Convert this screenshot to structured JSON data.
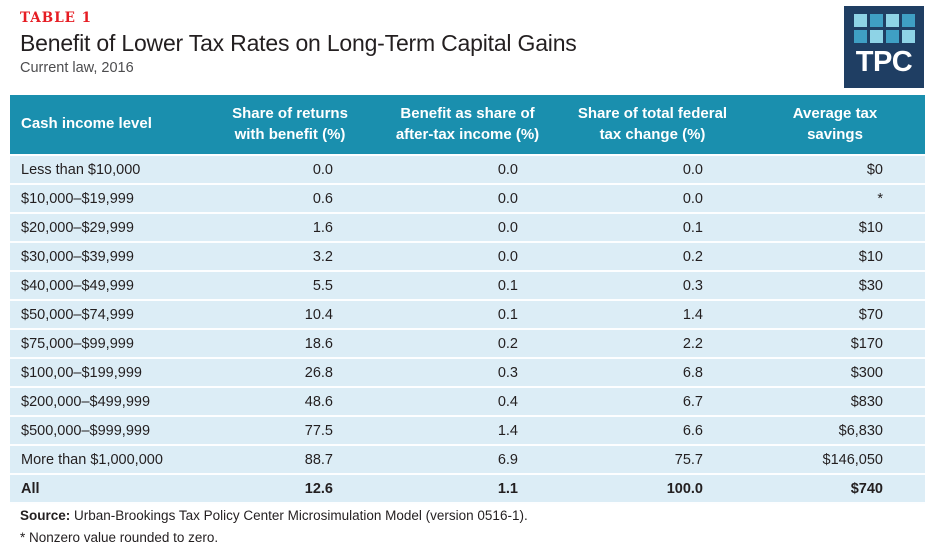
{
  "page": {
    "table_label": "TABLE 1",
    "title": "Benefit of Lower Tax Rates on Long-Term Capital Gains",
    "subtitle": "Current law, 2016"
  },
  "logo": {
    "text": "TPC",
    "background": "#1f3e63",
    "grid_colors": [
      "#8ed3e6",
      "#3f9fc4",
      "#8ed3e6",
      "#3f9fc4",
      "#3f9fc4",
      "#8ed3e6",
      "#3f9fc4",
      "#8ed3e6"
    ]
  },
  "colors": {
    "accent_red": "#e61c23",
    "header_teal": "#1a8fae",
    "row_blue": "#dcedf6",
    "text_dark": "#231f20"
  },
  "chart_data": {
    "type": "table",
    "title": "Benefit of Lower Tax Rates on Long-Term Capital Gains",
    "subtitle": "Current law, 2016",
    "columns": [
      {
        "name": "Cash income level",
        "line1": "Cash income level",
        "line2": ""
      },
      {
        "name": "Share of returns with benefit (%)",
        "line1": "Share of returns",
        "line2": "with benefit (%)"
      },
      {
        "name": "Benefit as share of after-tax income (%)",
        "line1": "Benefit as share of",
        "line2": "after-tax income (%)"
      },
      {
        "name": "Share of total federal tax change (%)",
        "line1": "Share of total federal",
        "line2": "tax change (%)"
      },
      {
        "name": "Average tax savings",
        "line1": "Average tax",
        "line2": "savings"
      }
    ],
    "rows": [
      [
        "Less than $10,000",
        "0.0",
        "0.0",
        "0.0",
        "$0"
      ],
      [
        "$10,000–$19,999",
        "0.6",
        "0.0",
        "0.0",
        "*"
      ],
      [
        "$20,000–$29,999",
        "1.6",
        "0.0",
        "0.1",
        "$10"
      ],
      [
        "$30,000–$39,999",
        "3.2",
        "0.0",
        "0.2",
        "$10"
      ],
      [
        "$40,000–$49,999",
        "5.5",
        "0.1",
        "0.3",
        "$30"
      ],
      [
        "$50,000–$74,999",
        "10.4",
        "0.1",
        "1.4",
        "$70"
      ],
      [
        "$75,000–$99,999",
        "18.6",
        "0.2",
        "2.2",
        "$170"
      ],
      [
        "$100,00–$199,999",
        "26.8",
        "0.3",
        "6.8",
        "$300"
      ],
      [
        "$200,000–$499,999",
        "48.6",
        "0.4",
        "6.7",
        "$830"
      ],
      [
        "$500,000–$999,999",
        "77.5",
        "1.4",
        "6.6",
        "$6,830"
      ],
      [
        "More than $1,000,000",
        "88.7",
        "6.9",
        "75.7",
        "$146,050"
      ],
      [
        "All",
        "12.6",
        "1.1",
        "100.0",
        "$740"
      ]
    ],
    "total_row_label": "All"
  },
  "footer": {
    "source_label": "Source:",
    "source_text": " Urban-Brookings Tax Policy Center Microsimulation Model (version 0516-1).",
    "footnote": "* Nonzero value rounded to zero."
  }
}
